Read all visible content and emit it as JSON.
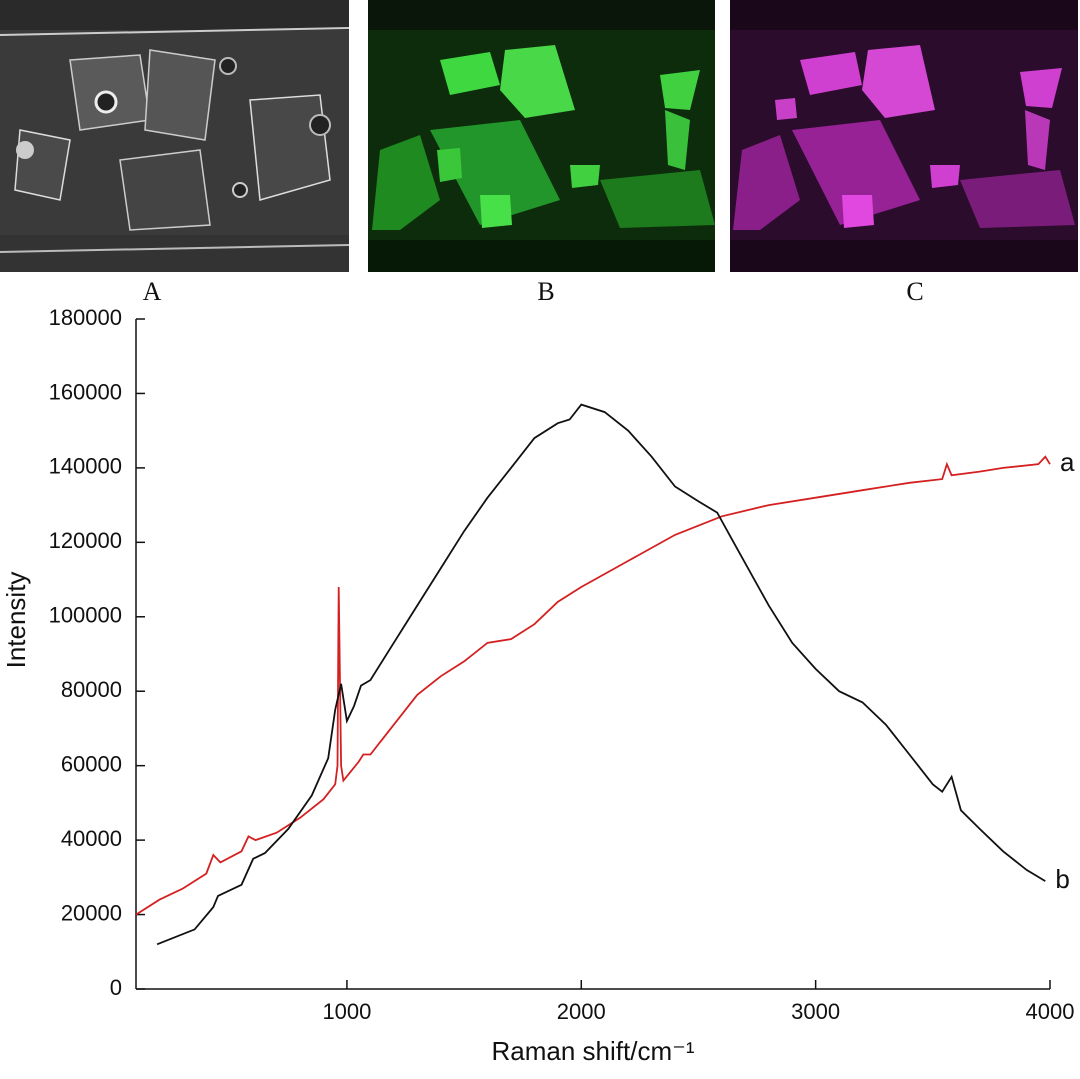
{
  "panel_labels": [
    "A",
    "B",
    "C"
  ],
  "chart_data": {
    "type": "line",
    "xlabel": "Raman shift/cm⁻¹",
    "ylabel": "Intensity",
    "xlim": [
      100,
      4000
    ],
    "ylim": [
      0,
      180000
    ],
    "xticks": [
      1000,
      2000,
      3000,
      4000
    ],
    "yticks": [
      0,
      20000,
      40000,
      60000,
      80000,
      100000,
      120000,
      140000,
      160000,
      180000
    ],
    "grid": false,
    "series": [
      {
        "name": "a",
        "color": "#d42020",
        "x": [
          100,
          200,
          300,
          400,
          430,
          460,
          550,
          580,
          610,
          700,
          800,
          900,
          950,
          960,
          965,
          975,
          985,
          1050,
          1070,
          1100,
          1200,
          1300,
          1400,
          1500,
          1600,
          1700,
          1800,
          1900,
          2000,
          2200,
          2400,
          2600,
          2800,
          3000,
          3200,
          3400,
          3540,
          3560,
          3580,
          3700,
          3800,
          3950,
          3980,
          4000
        ],
        "values": [
          20000,
          24000,
          27000,
          31000,
          36000,
          34000,
          37000,
          41000,
          40000,
          42000,
          46000,
          51000,
          55000,
          60000,
          108000,
          60000,
          56000,
          61000,
          63000,
          63000,
          71000,
          79000,
          84000,
          88000,
          93000,
          94000,
          98000,
          104000,
          108000,
          115000,
          122000,
          127000,
          130000,
          132000,
          134000,
          136000,
          137000,
          141000,
          138000,
          139000,
          140000,
          141000,
          143000,
          141000
        ]
      },
      {
        "name": "b",
        "color": "#111111",
        "x": [
          190,
          350,
          430,
          450,
          550,
          600,
          650,
          750,
          850,
          920,
          950,
          975,
          1000,
          1030,
          1060,
          1100,
          1200,
          1300,
          1400,
          1500,
          1600,
          1700,
          1800,
          1900,
          1950,
          2000,
          2100,
          2200,
          2300,
          2400,
          2500,
          2580,
          2650,
          2800,
          2900,
          3000,
          3100,
          3200,
          3300,
          3400,
          3500,
          3540,
          3580,
          3620,
          3700,
          3800,
          3900,
          3980
        ],
        "values": [
          12000,
          16000,
          22000,
          25000,
          28000,
          35000,
          36500,
          43000,
          52000,
          62000,
          75000,
          82000,
          72000,
          76000,
          81500,
          83000,
          93000,
          103000,
          113000,
          123000,
          132000,
          140000,
          148000,
          152000,
          153000,
          157000,
          155000,
          150000,
          143000,
          135000,
          131000,
          128000,
          120000,
          103000,
          93000,
          86000,
          80000,
          77000,
          71000,
          63000,
          55000,
          53000,
          57000,
          48000,
          43000,
          37000,
          32000,
          29000
        ]
      }
    ]
  }
}
